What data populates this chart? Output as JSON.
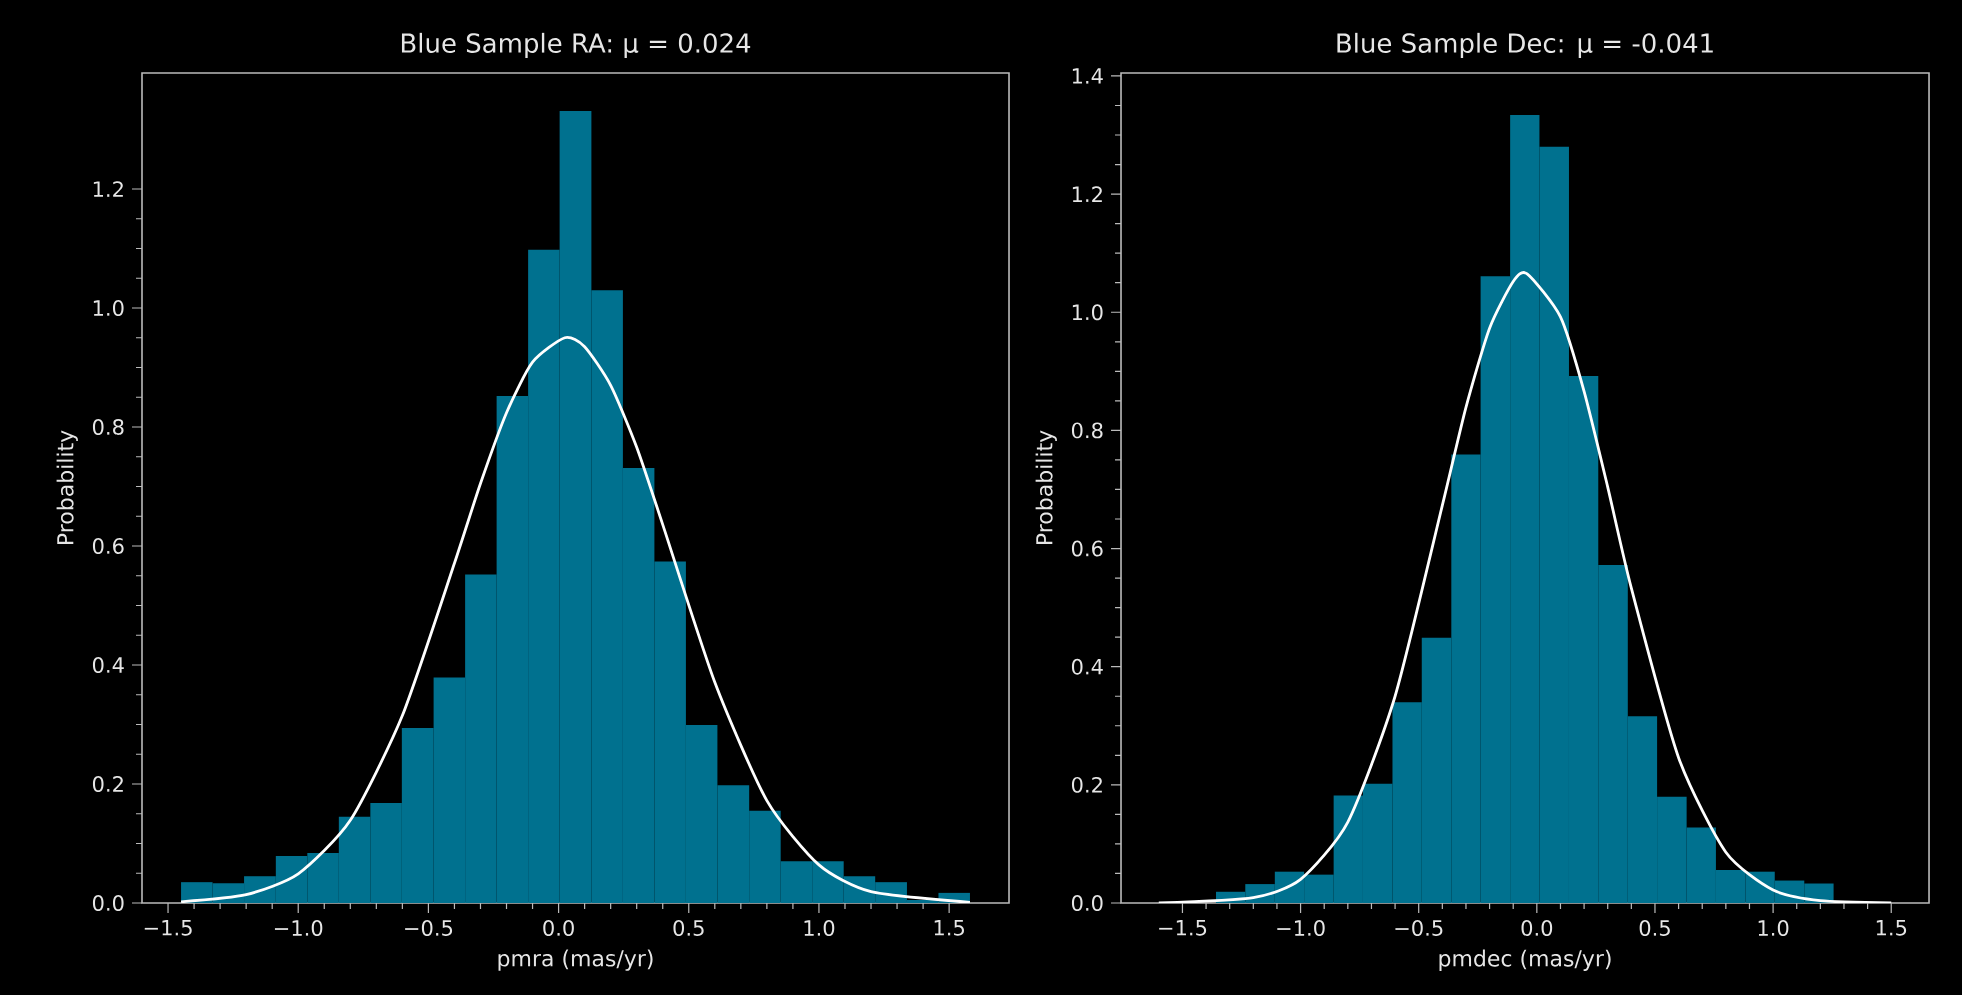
{
  "chart_data": [
    {
      "type": "histogram",
      "title": "Blue Sample RA: μ = 0.024",
      "xlabel": "pmra (mas/yr)",
      "ylabel": "Probability",
      "xlim": [
        -1.6,
        1.73
      ],
      "ylim": [
        0,
        1.395
      ],
      "xticks": [
        {
          "value": -1.5,
          "label": "−1.5"
        },
        {
          "value": -1.0,
          "label": "−1.0"
        },
        {
          "value": -0.5,
          "label": "−0.5"
        },
        {
          "value": 0,
          "label": "0.0"
        },
        {
          "value": 0.5,
          "label": "0.5"
        },
        {
          "value": 1.0,
          "label": "1.0"
        },
        {
          "value": 1.5,
          "label": "1.5"
        }
      ],
      "yticks": [
        {
          "value": 0,
          "label": "0.0"
        },
        {
          "value": 0.2,
          "label": "0.2"
        },
        {
          "value": 0.4,
          "label": "0.4"
        },
        {
          "value": 0.6,
          "label": "0.6"
        },
        {
          "value": 0.8,
          "label": "0.8"
        },
        {
          "value": 1.0,
          "label": "1.0"
        },
        {
          "value": 1.2,
          "label": "1.2"
        }
      ],
      "series": [
        {
          "color": "#00718f",
          "bins": [
            -1.45,
            -1.329,
            -1.208,
            -1.086,
            -0.965,
            -0.844,
            -0.723,
            -0.602,
            -0.48,
            -0.359,
            -0.238,
            -0.117,
            0.004,
            0.126,
            0.247,
            0.368,
            0.489,
            0.61,
            0.732,
            0.853,
            0.974,
            1.095,
            1.216,
            1.338,
            1.459,
            1.58
          ],
          "values": [
            0.035,
            0.033,
            0.045,
            0.079,
            0.084,
            0.145,
            0.168,
            0.294,
            0.379,
            0.552,
            0.852,
            1.098,
            1.331,
            1.03,
            0.731,
            0.574,
            0.299,
            0.198,
            0.155,
            0.07,
            0.07,
            0.045,
            0.035,
            0.005,
            0.017
          ]
        },
        {
          "type": "line",
          "color": "#ffffff",
          "x": [
            -1.45,
            -1.2,
            -1.0,
            -0.8,
            -0.6,
            -0.4,
            -0.3,
            -0.2,
            -0.1,
            0.024,
            0.1,
            0.2,
            0.3,
            0.4,
            0.6,
            0.8,
            1.0,
            1.2,
            1.58
          ],
          "values": [
            0.002,
            0.014,
            0.049,
            0.139,
            0.315,
            0.571,
            0.705,
            0.824,
            0.909,
            0.95,
            0.935,
            0.87,
            0.766,
            0.636,
            0.371,
            0.172,
            0.064,
            0.019,
            0.001
          ]
        }
      ]
    },
    {
      "type": "histogram",
      "title": "Blue Sample Dec: μ = -0.041",
      "xlabel": "pmdec (mas/yr)",
      "ylabel": "Probability",
      "xlim": [
        -1.76,
        1.66
      ],
      "ylim": [
        0,
        1.405
      ],
      "xticks": [
        {
          "value": -1.5,
          "label": "−1.5"
        },
        {
          "value": -1.0,
          "label": "−1.0"
        },
        {
          "value": -0.5,
          "label": "−0.5"
        },
        {
          "value": 0,
          "label": "0.0"
        },
        {
          "value": 0.5,
          "label": "0.5"
        },
        {
          "value": 1.0,
          "label": "1.0"
        },
        {
          "value": 1.5,
          "label": "1.5"
        }
      ],
      "yticks": [
        {
          "value": 0,
          "label": "0.0"
        },
        {
          "value": 0.2,
          "label": "0.2"
        },
        {
          "value": 0.4,
          "label": "0.4"
        },
        {
          "value": 0.6,
          "label": "0.6"
        },
        {
          "value": 0.8,
          "label": "0.8"
        },
        {
          "value": 1.0,
          "label": "1.0"
        },
        {
          "value": 1.2,
          "label": "1.2"
        },
        {
          "value": 1.4,
          "label": "1.4"
        }
      ],
      "series": [
        {
          "color": "#00718f",
          "bins": [
            -1.607,
            -1.483,
            -1.358,
            -1.234,
            -1.109,
            -0.985,
            -0.86,
            -0.736,
            -0.611,
            -0.487,
            -0.362,
            -0.238,
            -0.113,
            0.011,
            0.136,
            0.26,
            0.385,
            0.509,
            0.634,
            0.758,
            0.883,
            1.007,
            1.132,
            1.256,
            1.381,
            1.505
          ],
          "values": [
            null,
            null,
            0.019,
            0.032,
            0.053,
            0.048,
            0.182,
            0.202,
            0.34,
            0.449,
            0.759,
            1.061,
            1.334,
            1.28,
            0.892,
            0.572,
            0.316,
            0.18,
            0.128,
            0.056,
            0.053,
            0.038,
            0.033,
            null,
            null
          ]
        },
        {
          "type": "line",
          "color": "#ffffff",
          "x": [
            -1.6,
            -1.2,
            -1.0,
            -0.8,
            -0.6,
            -0.4,
            -0.3,
            -0.2,
            -0.1,
            -0.041,
            0.1,
            0.2,
            0.3,
            0.4,
            0.6,
            0.8,
            1.0,
            1.2,
            1.5
          ],
          "values": [
            0.0,
            0.009,
            0.04,
            0.137,
            0.35,
            0.673,
            0.839,
            0.973,
            1.052,
            1.065,
            0.992,
            0.866,
            0.704,
            0.533,
            0.246,
            0.086,
            0.022,
            0.004,
            0.0
          ]
        }
      ]
    }
  ]
}
